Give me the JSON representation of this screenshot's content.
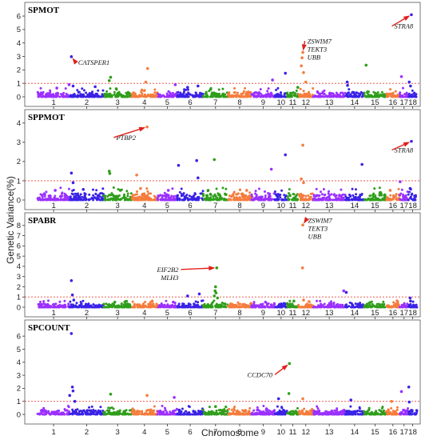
{
  "figure": {
    "ylabel": "Genetic Variance(%)",
    "xlabel": "Chromosome",
    "threshold": 1,
    "colors": {
      "cycle": [
        "#9b30ff",
        "#3a22e6",
        "#2f9e1b",
        "#f57c3c"
      ],
      "threshold_line": "#e8443a",
      "arrow": "#e0201b",
      "panel_border": "#555555"
    },
    "chromosomes": [
      "1",
      "2",
      "3",
      "4",
      "5",
      "6",
      "7",
      "8",
      "9",
      "10",
      "11",
      "12",
      "13",
      "14",
      "15",
      "16",
      "17",
      "18"
    ]
  },
  "chart_data": [
    {
      "type": "scatter",
      "title": "SPMOT",
      "ylim": [
        0,
        6.3
      ],
      "yticks": [
        0,
        1,
        2,
        3,
        4,
        5,
        6
      ],
      "peaks": [
        {
          "chrom": "1",
          "pos": 0.6,
          "value": 0.65
        },
        {
          "chrom": "1",
          "pos": 0.98,
          "value": 0.9
        },
        {
          "chrom": "2",
          "pos": 0.05,
          "value": 2.98
        },
        {
          "chrom": "2",
          "pos": 0.1,
          "value": 0.8
        },
        {
          "chrom": "2",
          "pos": 0.75,
          "value": 0.75
        },
        {
          "chrom": "3",
          "pos": 0.25,
          "value": 1.45
        },
        {
          "chrom": "3",
          "pos": 0.2,
          "value": 1.2
        },
        {
          "chrom": "3",
          "pos": 0.45,
          "value": 0.6
        },
        {
          "chrom": "4",
          "pos": 0.62,
          "value": 2.1
        },
        {
          "chrom": "4",
          "pos": 0.55,
          "value": 1.1
        },
        {
          "chrom": "4",
          "pos": 0.4,
          "value": 0.5
        },
        {
          "chrom": "5",
          "pos": 0.9,
          "value": 0.9
        },
        {
          "chrom": "6",
          "pos": 0.4,
          "value": 0.7
        },
        {
          "chrom": "6",
          "pos": 0.8,
          "value": 0.8
        },
        {
          "chrom": "7",
          "pos": 0.3,
          "value": 0.55
        },
        {
          "chrom": "9",
          "pos": 0.9,
          "value": 1.25
        },
        {
          "chrom": "10",
          "pos": 0.85,
          "value": 1.75
        },
        {
          "chrom": "11",
          "pos": 0.95,
          "value": 0.7
        },
        {
          "chrom": "12",
          "pos": 0.3,
          "value": 3.3
        },
        {
          "chrom": "12",
          "pos": 0.25,
          "value": 2.9
        },
        {
          "chrom": "12",
          "pos": 0.2,
          "value": 2.3
        },
        {
          "chrom": "12",
          "pos": 0.35,
          "value": 1.8
        },
        {
          "chrom": "12",
          "pos": 0.5,
          "value": 1.1
        },
        {
          "chrom": "14",
          "pos": 0.1,
          "value": 1.1
        },
        {
          "chrom": "14",
          "pos": 0.12,
          "value": 0.85
        },
        {
          "chrom": "15",
          "pos": 0.1,
          "value": 2.35
        },
        {
          "chrom": "17",
          "pos": 0.2,
          "value": 1.5
        },
        {
          "chrom": "18",
          "pos": 0.1,
          "value": 1.1
        },
        {
          "chrom": "18",
          "pos": 0.35,
          "value": 6.1
        },
        {
          "chrom": "18",
          "pos": 0.25,
          "value": 0.8
        }
      ],
      "annotations": [
        {
          "genes": [
            "CATSPER1"
          ],
          "chrom": "2",
          "pos": 0.05,
          "value": 2.98,
          "text_pos": 0.25,
          "text_value": 2.55,
          "text_chrom": "2",
          "anchor": "start"
        },
        {
          "genes": [
            "ZSWIM7",
            "TEKT3",
            "UBB"
          ],
          "chrom": "12",
          "pos": 0.3,
          "value": 3.3,
          "text_pos": 0.6,
          "text_value": 3.55,
          "text_chrom": "12",
          "anchor": "start"
        },
        {
          "genes": [
            "STRA8"
          ],
          "chrom": "18",
          "pos": 0.35,
          "value": 6.1,
          "text_pos": 0.6,
          "text_value": 5.25,
          "text_chrom": "16",
          "anchor": "start"
        }
      ]
    },
    {
      "type": "scatter",
      "title": "SPPMOT",
      "ylim": [
        0,
        4.2
      ],
      "yticks": [
        0,
        1,
        2,
        3,
        4
      ],
      "peaks": [
        {
          "chrom": "1",
          "pos": 0.55,
          "value": 0.5
        },
        {
          "chrom": "2",
          "pos": 0.05,
          "value": 1.4
        },
        {
          "chrom": "2",
          "pos": 0.1,
          "value": 0.9
        },
        {
          "chrom": "2",
          "pos": 0.4,
          "value": 0.55
        },
        {
          "chrom": "3",
          "pos": 0.2,
          "value": 1.5
        },
        {
          "chrom": "3",
          "pos": 0.22,
          "value": 1.38
        },
        {
          "chrom": "3",
          "pos": 0.6,
          "value": 0.5
        },
        {
          "chrom": "4",
          "pos": 0.6,
          "value": 3.8
        },
        {
          "chrom": "4",
          "pos": 0.2,
          "value": 1.3
        },
        {
          "chrom": "4",
          "pos": 0.35,
          "value": 0.6
        },
        {
          "chrom": "5",
          "pos": 0.55,
          "value": 0.5
        },
        {
          "chrom": "6",
          "pos": 0.05,
          "value": 1.8
        },
        {
          "chrom": "6",
          "pos": 0.75,
          "value": 2.05
        },
        {
          "chrom": "6",
          "pos": 0.8,
          "value": 1.15
        },
        {
          "chrom": "7",
          "pos": 0.45,
          "value": 2.1
        },
        {
          "chrom": "7",
          "pos": 0.2,
          "value": 0.5
        },
        {
          "chrom": "8",
          "pos": 0.8,
          "value": 0.5
        },
        {
          "chrom": "9",
          "pos": 0.85,
          "value": 1.6
        },
        {
          "chrom": "10",
          "pos": 0.85,
          "value": 2.35
        },
        {
          "chrom": "12",
          "pos": 0.3,
          "value": 2.85
        },
        {
          "chrom": "12",
          "pos": 0.2,
          "value": 1.1
        },
        {
          "chrom": "12",
          "pos": 0.35,
          "value": 0.9
        },
        {
          "chrom": "14",
          "pos": 0.9,
          "value": 1.85
        },
        {
          "chrom": "16",
          "pos": 0.3,
          "value": 0.5
        },
        {
          "chrom": "17",
          "pos": 0.05,
          "value": 0.95
        },
        {
          "chrom": "18",
          "pos": 0.35,
          "value": 3.05
        },
        {
          "chrom": "18",
          "pos": 0.2,
          "value": 0.6
        }
      ],
      "annotations": [
        {
          "genes": [
            "PTBP2"
          ],
          "chrom": "4",
          "pos": 0.6,
          "value": 3.8,
          "text_pos": 0.45,
          "text_value": 3.25,
          "text_chrom": "3",
          "anchor": "start"
        },
        {
          "genes": [
            "STRA8"
          ],
          "chrom": "18",
          "pos": 0.35,
          "value": 3.05,
          "text_pos": 0.6,
          "text_value": 2.6,
          "text_chrom": "16",
          "anchor": "start"
        }
      ]
    },
    {
      "type": "scatter",
      "title": "SPABR",
      "ylim": [
        0,
        8.3
      ],
      "yticks": [
        0,
        1,
        2,
        3,
        4,
        5,
        6,
        7,
        8
      ],
      "peaks": [
        {
          "chrom": "2",
          "pos": 0.05,
          "value": 2.6
        },
        {
          "chrom": "2",
          "pos": 0.08,
          "value": 1.2
        },
        {
          "chrom": "2",
          "pos": 0.12,
          "value": 0.7
        },
        {
          "chrom": "3",
          "pos": 0.4,
          "value": 0.5
        },
        {
          "chrom": "4",
          "pos": 0.8,
          "value": 0.6
        },
        {
          "chrom": "5",
          "pos": 0.8,
          "value": 0.5
        },
        {
          "chrom": "6",
          "pos": 0.4,
          "value": 1.1
        },
        {
          "chrom": "6",
          "pos": 0.85,
          "value": 1.3
        },
        {
          "chrom": "7",
          "pos": 0.55,
          "value": 3.85
        },
        {
          "chrom": "7",
          "pos": 0.5,
          "value": 2.0
        },
        {
          "chrom": "7",
          "pos": 0.48,
          "value": 1.6
        },
        {
          "chrom": "7",
          "pos": 0.52,
          "value": 1.4
        },
        {
          "chrom": "7",
          "pos": 0.45,
          "value": 1.1
        },
        {
          "chrom": "7",
          "pos": 0.58,
          "value": 0.9
        },
        {
          "chrom": "9",
          "pos": 0.6,
          "value": 0.5
        },
        {
          "chrom": "11",
          "pos": 0.6,
          "value": 0.6
        },
        {
          "chrom": "12",
          "pos": 0.3,
          "value": 8.05
        },
        {
          "chrom": "12",
          "pos": 0.28,
          "value": 3.85
        },
        {
          "chrom": "12",
          "pos": 0.35,
          "value": 0.7
        },
        {
          "chrom": "13",
          "pos": 0.95,
          "value": 1.6
        },
        {
          "chrom": "14",
          "pos": 0.05,
          "value": 1.45
        },
        {
          "chrom": "16",
          "pos": 0.85,
          "value": 0.55
        },
        {
          "chrom": "18",
          "pos": 0.2,
          "value": 0.9
        },
        {
          "chrom": "18",
          "pos": 0.25,
          "value": 0.6
        }
      ],
      "annotations": [
        {
          "genes": [
            "ZSWIM7",
            "TEKT3",
            "UBB"
          ],
          "chrom": "12",
          "pos": 0.3,
          "value": 8.05,
          "text_pos": 0.65,
          "text_value": 7.7,
          "text_chrom": "12",
          "anchor": "start"
        },
        {
          "genes": [
            "EIF2B2",
            "MLH3"
          ],
          "chrom": "7",
          "pos": 0.55,
          "value": 3.85,
          "text_pos": 0.05,
          "text_value": 3.3,
          "text_chrom": "6",
          "anchor": "end"
        }
      ]
    },
    {
      "type": "scatter",
      "title": "SPCOUNT",
      "ylim": [
        0,
        6.5
      ],
      "yticks": [
        0,
        1,
        2,
        3,
        4,
        5,
        6
      ],
      "peaks": [
        {
          "chrom": "2",
          "pos": 0.05,
          "value": 6.2
        },
        {
          "chrom": "2",
          "pos": 0.08,
          "value": 2.1
        },
        {
          "chrom": "2",
          "pos": 0.1,
          "value": 1.8
        },
        {
          "chrom": "2",
          "pos": 0.0,
          "value": 1.45
        },
        {
          "chrom": "2",
          "pos": 0.15,
          "value": 1.0
        },
        {
          "chrom": "3",
          "pos": 0.25,
          "value": 1.55
        },
        {
          "chrom": "4",
          "pos": 0.6,
          "value": 1.45
        },
        {
          "chrom": "5",
          "pos": 0.85,
          "value": 1.3
        },
        {
          "chrom": "7",
          "pos": 0.5,
          "value": 0.6
        },
        {
          "chrom": "10",
          "pos": 0.3,
          "value": 1.2
        },
        {
          "chrom": "11",
          "pos": 0.2,
          "value": 3.9
        },
        {
          "chrom": "11",
          "pos": 0.15,
          "value": 1.6
        },
        {
          "chrom": "12",
          "pos": 0.3,
          "value": 1.2
        },
        {
          "chrom": "14",
          "pos": 0.3,
          "value": 1.1
        },
        {
          "chrom": "16",
          "pos": 0.4,
          "value": 1.0
        },
        {
          "chrom": "17",
          "pos": 0.2,
          "value": 1.75
        },
        {
          "chrom": "18",
          "pos": 0.05,
          "value": 2.1
        },
        {
          "chrom": "18",
          "pos": 0.1,
          "value": 0.95
        }
      ],
      "annotations": [
        {
          "genes": [
            "CCDC70"
          ],
          "chrom": "11",
          "pos": 0.2,
          "value": 3.9,
          "text_pos": 0.9,
          "text_value": 3.05,
          "text_chrom": "9",
          "anchor": "end"
        }
      ]
    }
  ]
}
